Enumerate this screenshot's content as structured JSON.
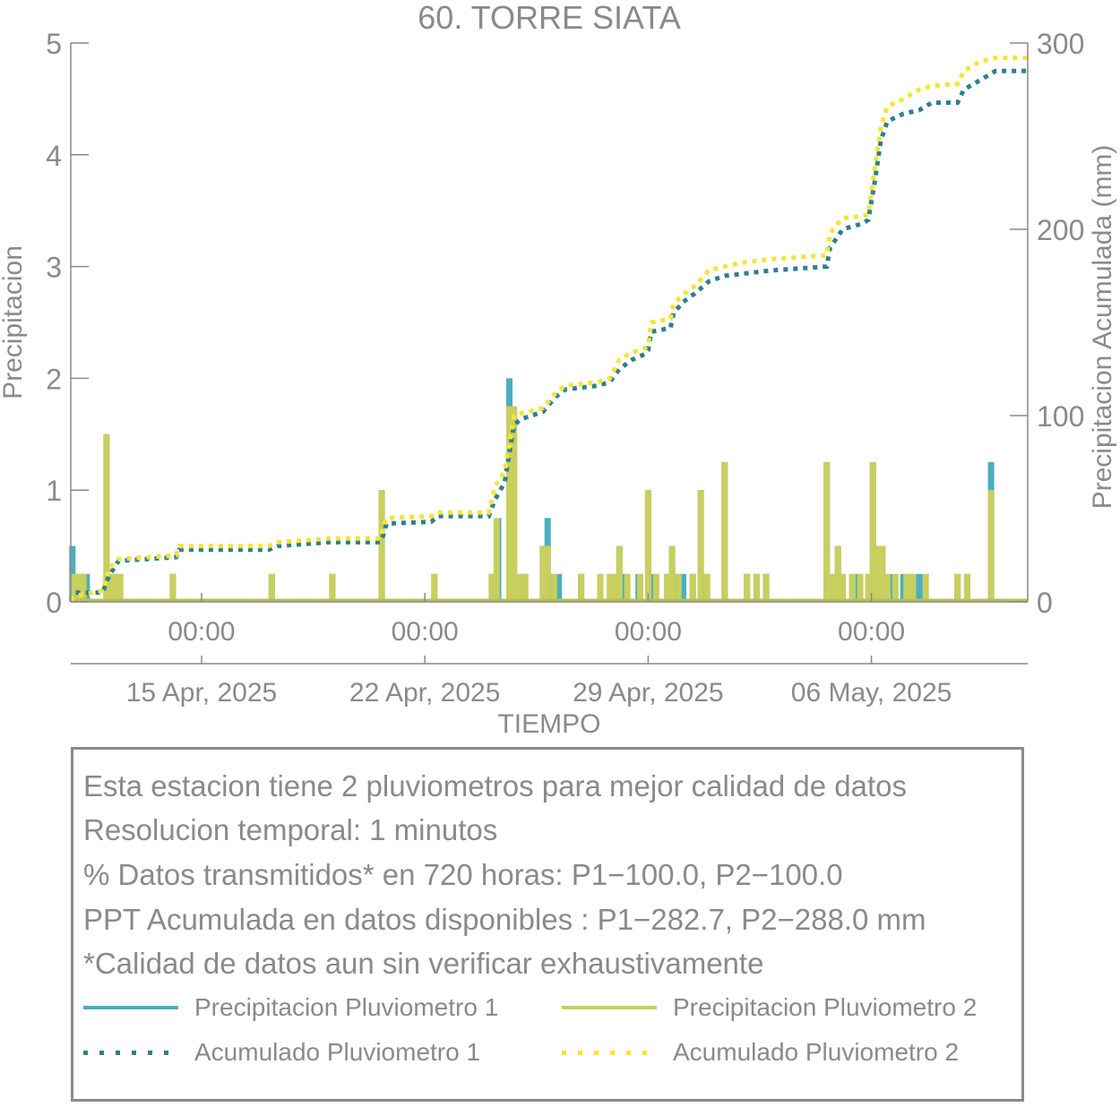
{
  "chart_data": {
    "type": "bar+line",
    "title": "60. TORRE SIATA",
    "xlabel": "TIEMPO",
    "ylabel_left": "Precipitacion",
    "ylabel_right": "Precipitacion Acumulada (mm)",
    "ylim_left": [
      0,
      5
    ],
    "ylim_right": [
      0,
      300
    ],
    "yticks_left": [
      "0",
      "1",
      "2",
      "3",
      "4",
      "5"
    ],
    "yticks_right": [
      "0",
      "100",
      "200",
      "300"
    ],
    "xlim_days": [
      0,
      30
    ],
    "xticks": [
      {
        "day": 4.1,
        "time": "00:00",
        "date": "15 Apr, 2025"
      },
      {
        "day": 11.1,
        "time": "00:00",
        "date": "22 Apr, 2025"
      },
      {
        "day": 18.1,
        "time": "00:00",
        "date": "29 Apr, 2025"
      },
      {
        "day": 25.1,
        "time": "00:00",
        "date": "06 May, 2025"
      }
    ],
    "series": [
      {
        "name": "Precipitacion Pluviometro 1",
        "kind": "bar",
        "color": "#4aafc0",
        "points": [
          [
            0.05,
            0.5
          ],
          [
            0.1,
            0.25
          ],
          [
            0.2,
            0.25
          ],
          [
            0.35,
            0.25
          ],
          [
            0.5,
            0.25
          ],
          [
            1.12,
            1.5
          ],
          [
            1.2,
            0.25
          ],
          [
            1.35,
            0.25
          ],
          [
            1.5,
            0.25
          ],
          [
            3.2,
            0.25
          ],
          [
            6.3,
            0.25
          ],
          [
            8.2,
            0.25
          ],
          [
            9.75,
            1.0
          ],
          [
            11.4,
            0.25
          ],
          [
            13.2,
            0.25
          ],
          [
            13.4,
            0.75
          ],
          [
            13.75,
            2.0
          ],
          [
            13.85,
            1.75
          ],
          [
            14.0,
            0.25
          ],
          [
            14.2,
            0.25
          ],
          [
            14.8,
            0.5
          ],
          [
            14.95,
            0.75
          ],
          [
            15.1,
            0.25
          ],
          [
            15.3,
            0.25
          ],
          [
            16.0,
            0.25
          ],
          [
            16.6,
            0.25
          ],
          [
            17.0,
            0.25
          ],
          [
            17.2,
            0.5
          ],
          [
            17.4,
            0.25
          ],
          [
            17.8,
            0.25
          ],
          [
            18.1,
            1.0
          ],
          [
            18.3,
            0.25
          ],
          [
            18.7,
            0.25
          ],
          [
            18.85,
            0.5
          ],
          [
            19.0,
            0.25
          ],
          [
            19.2,
            0.25
          ],
          [
            19.5,
            0.25
          ],
          [
            19.75,
            1.0
          ],
          [
            19.9,
            0.25
          ],
          [
            20.5,
            1.25
          ],
          [
            21.2,
            0.25
          ],
          [
            21.5,
            0.25
          ],
          [
            21.8,
            0.25
          ],
          [
            23.7,
            1.25
          ],
          [
            23.9,
            0.25
          ],
          [
            24.05,
            0.5
          ],
          [
            24.2,
            0.25
          ],
          [
            24.5,
            0.25
          ],
          [
            24.7,
            0.25
          ],
          [
            25.0,
            0.25
          ],
          [
            25.15,
            1.25
          ],
          [
            25.3,
            0.5
          ],
          [
            25.45,
            0.5
          ],
          [
            25.6,
            0.25
          ],
          [
            25.8,
            0.25
          ],
          [
            26.1,
            0.25
          ],
          [
            26.4,
            0.25
          ],
          [
            26.6,
            0.25
          ],
          [
            26.8,
            0.25
          ],
          [
            27.8,
            0.25
          ],
          [
            28.1,
            0.25
          ],
          [
            28.85,
            1.25
          ]
        ]
      },
      {
        "name": "Precipitacion Pluviometro 2",
        "kind": "bar",
        "color": "#c8cf5e",
        "points": [
          [
            0.1,
            0.25
          ],
          [
            0.25,
            0.25
          ],
          [
            0.4,
            0.25
          ],
          [
            1.12,
            1.5
          ],
          [
            1.25,
            0.25
          ],
          [
            1.4,
            0.25
          ],
          [
            1.55,
            0.25
          ],
          [
            3.2,
            0.25
          ],
          [
            6.3,
            0.25
          ],
          [
            8.2,
            0.25
          ],
          [
            9.75,
            1.0
          ],
          [
            11.4,
            0.25
          ],
          [
            13.2,
            0.25
          ],
          [
            13.35,
            0.75
          ],
          [
            13.75,
            1.75
          ],
          [
            13.9,
            1.75
          ],
          [
            14.05,
            0.25
          ],
          [
            14.25,
            0.25
          ],
          [
            14.8,
            0.5
          ],
          [
            14.95,
            0.5
          ],
          [
            15.15,
            0.25
          ],
          [
            16.0,
            0.25
          ],
          [
            16.6,
            0.25
          ],
          [
            16.9,
            0.25
          ],
          [
            17.05,
            0.25
          ],
          [
            17.2,
            0.5
          ],
          [
            17.45,
            0.25
          ],
          [
            17.85,
            0.25
          ],
          [
            18.1,
            1.0
          ],
          [
            18.35,
            0.25
          ],
          [
            18.7,
            0.25
          ],
          [
            18.85,
            0.5
          ],
          [
            19.05,
            0.25
          ],
          [
            19.5,
            0.25
          ],
          [
            19.75,
            1.0
          ],
          [
            19.95,
            0.25
          ],
          [
            20.5,
            1.25
          ],
          [
            21.2,
            0.25
          ],
          [
            21.5,
            0.25
          ],
          [
            21.8,
            0.25
          ],
          [
            23.7,
            1.25
          ],
          [
            23.9,
            0.25
          ],
          [
            24.05,
            0.5
          ],
          [
            24.2,
            0.25
          ],
          [
            24.5,
            0.25
          ],
          [
            24.75,
            0.25
          ],
          [
            25.0,
            0.25
          ],
          [
            25.15,
            1.25
          ],
          [
            25.3,
            0.5
          ],
          [
            25.45,
            0.5
          ],
          [
            25.6,
            0.25
          ],
          [
            25.85,
            0.25
          ],
          [
            26.2,
            0.25
          ],
          [
            26.4,
            0.25
          ],
          [
            26.8,
            0.25
          ],
          [
            27.8,
            0.25
          ],
          [
            28.1,
            0.25
          ],
          [
            28.85,
            1.0
          ]
        ]
      },
      {
        "name": "Acumulado Pluviometro 1",
        "kind": "line",
        "color": "#2e7f8c",
        "points": [
          [
            0,
            1
          ],
          [
            0.1,
            5
          ],
          [
            1.0,
            5
          ],
          [
            1.2,
            14
          ],
          [
            1.5,
            22
          ],
          [
            3.3,
            24
          ],
          [
            3.4,
            28
          ],
          [
            6.2,
            28
          ],
          [
            6.5,
            30
          ],
          [
            8.1,
            32
          ],
          [
            9.7,
            32
          ],
          [
            9.8,
            36
          ],
          [
            9.9,
            42
          ],
          [
            11.3,
            43
          ],
          [
            11.5,
            46
          ],
          [
            13.1,
            46
          ],
          [
            13.3,
            55
          ],
          [
            13.6,
            64
          ],
          [
            13.75,
            80
          ],
          [
            13.9,
            95
          ],
          [
            14.1,
            98
          ],
          [
            14.8,
            102
          ],
          [
            15.2,
            110
          ],
          [
            15.5,
            114
          ],
          [
            16.0,
            115
          ],
          [
            16.5,
            116
          ],
          [
            16.9,
            118
          ],
          [
            17.2,
            125
          ],
          [
            17.6,
            130
          ],
          [
            18.0,
            133
          ],
          [
            18.1,
            135
          ],
          [
            18.2,
            145
          ],
          [
            18.8,
            147
          ],
          [
            18.9,
            155
          ],
          [
            19.2,
            161
          ],
          [
            19.6,
            166
          ],
          [
            20.0,
            172
          ],
          [
            20.5,
            175
          ],
          [
            21.0,
            176
          ],
          [
            22.0,
            178
          ],
          [
            23.7,
            180
          ],
          [
            23.8,
            190
          ],
          [
            24.2,
            200
          ],
          [
            24.8,
            203
          ],
          [
            25.0,
            205
          ],
          [
            25.2,
            225
          ],
          [
            25.4,
            248
          ],
          [
            25.6,
            258
          ],
          [
            26.1,
            262
          ],
          [
            26.6,
            264
          ],
          [
            27.0,
            268
          ],
          [
            27.8,
            268
          ],
          [
            28.0,
            275
          ],
          [
            28.5,
            280
          ],
          [
            29.0,
            285
          ],
          [
            30,
            285
          ]
        ]
      },
      {
        "name": "Acumulado Pluviometro 2",
        "kind": "line",
        "color": "#f5e436",
        "points": [
          [
            0,
            1
          ],
          [
            0.1,
            3
          ],
          [
            1.0,
            6
          ],
          [
            1.2,
            18
          ],
          [
            1.5,
            23
          ],
          [
            3.3,
            25
          ],
          [
            3.4,
            30
          ],
          [
            6.2,
            30
          ],
          [
            6.5,
            32
          ],
          [
            8.1,
            34
          ],
          [
            9.7,
            34
          ],
          [
            9.8,
            40
          ],
          [
            9.9,
            45
          ],
          [
            11.3,
            46
          ],
          [
            11.5,
            48
          ],
          [
            13.1,
            48
          ],
          [
            13.3,
            62
          ],
          [
            13.6,
            70
          ],
          [
            13.75,
            85
          ],
          [
            13.9,
            100
          ],
          [
            14.1,
            101
          ],
          [
            14.8,
            104
          ],
          [
            15.2,
            112
          ],
          [
            15.5,
            116
          ],
          [
            16.0,
            117
          ],
          [
            16.5,
            118
          ],
          [
            16.9,
            120
          ],
          [
            17.2,
            130
          ],
          [
            17.6,
            134
          ],
          [
            18.0,
            136
          ],
          [
            18.1,
            138
          ],
          [
            18.2,
            150
          ],
          [
            18.8,
            152
          ],
          [
            18.9,
            160
          ],
          [
            19.2,
            165
          ],
          [
            19.6,
            170
          ],
          [
            20.0,
            178
          ],
          [
            20.5,
            180
          ],
          [
            21.0,
            182
          ],
          [
            22.0,
            184
          ],
          [
            23.7,
            186
          ],
          [
            23.8,
            198
          ],
          [
            24.2,
            206
          ],
          [
            24.8,
            207
          ],
          [
            25.0,
            208
          ],
          [
            25.2,
            232
          ],
          [
            25.4,
            255
          ],
          [
            25.6,
            266
          ],
          [
            26.1,
            270
          ],
          [
            26.6,
            275
          ],
          [
            27.0,
            277
          ],
          [
            27.8,
            278
          ],
          [
            28.0,
            285
          ],
          [
            28.5,
            290
          ],
          [
            29.0,
            292
          ],
          [
            30,
            292
          ]
        ]
      }
    ]
  },
  "info": {
    "line1": "Esta estacion tiene 2 pluviometros para mejor calidad de datos",
    "line2": "Resolucion temporal: 1 minutos",
    "line3": "% Datos transmitidos* en 720 horas: P1−100.0, P2−100.0",
    "line4": "PPT Acumulada en datos disponibles : P1−282.7, P2−288.0 mm",
    "line5": "*Calidad de datos aun sin verificar exhaustivamente"
  },
  "legend": {
    "p1": "Precipitacion Pluviometro 1",
    "p2": "Precipitacion Pluviometro 2",
    "a1": "Acumulado Pluviometro 1",
    "a2": "Acumulado Pluviometro 2"
  }
}
